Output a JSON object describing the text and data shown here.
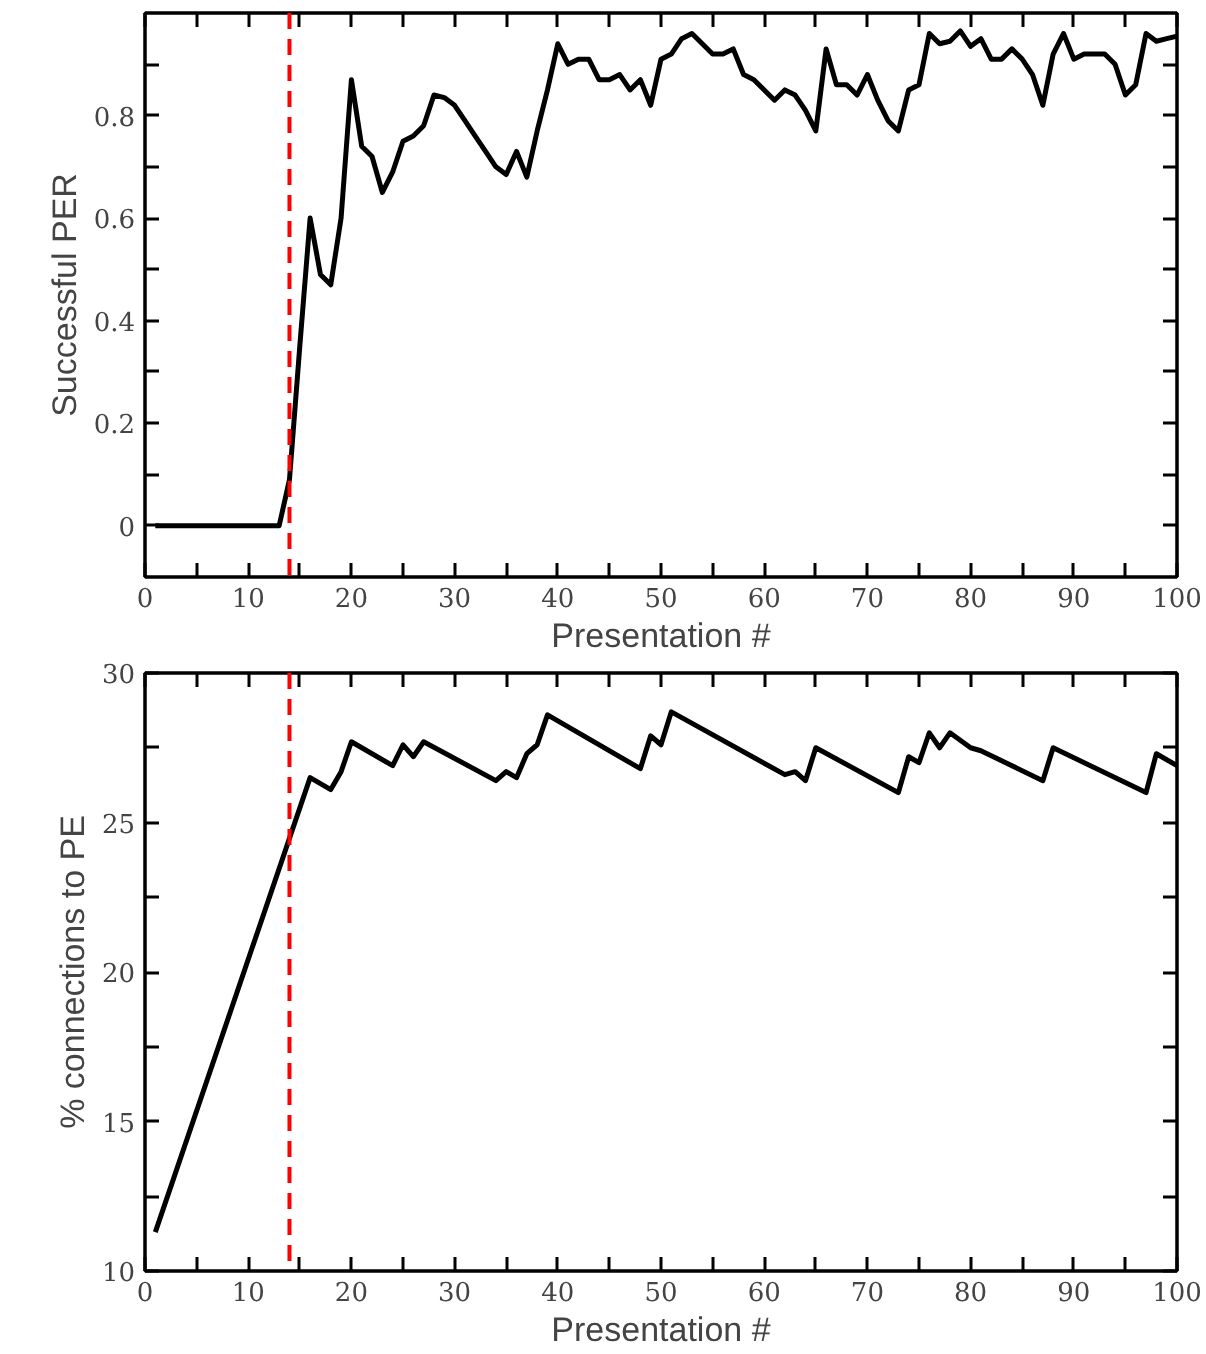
{
  "chart_data": [
    {
      "type": "line",
      "ylabel": "Successful PER",
      "xlabel": "Presentation #",
      "xlim": [
        0,
        100
      ],
      "ylim": [
        -0.1,
        1.0
      ],
      "xticks": [
        0,
        {
          "value": 5,
          "label": null
        },
        10,
        {
          "value": 15,
          "label": null
        },
        20,
        {
          "value": 25,
          "label": null
        },
        30,
        {
          "value": 35,
          "label": null
        },
        40,
        {
          "value": 45,
          "label": null
        },
        50,
        {
          "value": 55,
          "label": null
        },
        60,
        {
          "value": 65,
          "label": null
        },
        70,
        {
          "value": 75,
          "label": null
        },
        80,
        {
          "value": 85,
          "label": null
        },
        90,
        {
          "value": 95,
          "label": null
        },
        100
      ],
      "yticks": [
        0,
        {
          "value": 0.1,
          "label": null
        },
        0.2,
        {
          "value": 0.3,
          "label": null
        },
        0.4,
        {
          "value": 0.5,
          "label": null
        },
        0.6,
        {
          "value": 0.7,
          "label": null
        },
        0.8,
        {
          "value": 0.9,
          "label": null
        }
      ],
      "grid": false,
      "line_style": "solid",
      "x": [
        1,
        2,
        3,
        4,
        5,
        6,
        7,
        8,
        9,
        10,
        11,
        12,
        13,
        14,
        15,
        16,
        17,
        18,
        19,
        20,
        21,
        22,
        23,
        24,
        25,
        26,
        27,
        28,
        29,
        30,
        31,
        32,
        33,
        34,
        35,
        36,
        37,
        38,
        39,
        40,
        41,
        42,
        43,
        44,
        45,
        46,
        47,
        48,
        49,
        50,
        51,
        52,
        53,
        54,
        55,
        56,
        57,
        58,
        59,
        60,
        61,
        62,
        63,
        64,
        65,
        66,
        67,
        68,
        69,
        70,
        71,
        72,
        73,
        74,
        75,
        76,
        77,
        78,
        79,
        80,
        81,
        82,
        83,
        84,
        85,
        86,
        87,
        88,
        89,
        90,
        91,
        92,
        93,
        94,
        95,
        96,
        97,
        98,
        99,
        100
      ],
      "series": [
        {
          "color": "#000000",
          "values": [
            0,
            0,
            0,
            0,
            0,
            0,
            0,
            0,
            0,
            0,
            0,
            0,
            0,
            0.09,
            0.35,
            0.6,
            0.49,
            0.47,
            0.6,
            0.87,
            0.74,
            0.72,
            0.65,
            0.69,
            0.75,
            0.76,
            0.78,
            0.84,
            0.835,
            0.82,
            0.79,
            0.76,
            0.73,
            0.7,
            0.685,
            0.73,
            0.68,
            0.77,
            0.85,
            0.94,
            0.9,
            0.91,
            0.91,
            0.87,
            0.87,
            0.88,
            0.85,
            0.87,
            0.82,
            0.91,
            0.92,
            0.95,
            0.96,
            0.94,
            0.92,
            0.92,
            0.93,
            0.88,
            0.87,
            0.85,
            0.83,
            0.85,
            0.84,
            0.81,
            0.77,
            0.93,
            0.86,
            0.86,
            0.84,
            0.88,
            0.83,
            0.79,
            0.77,
            0.85,
            0.86,
            0.96,
            0.94,
            0.945,
            0.965,
            0.935,
            0.95,
            0.91,
            0.91,
            0.93,
            0.91,
            0.88,
            0.82,
            0.92,
            0.96,
            0.91,
            0.92,
            0.92,
            0.92,
            0.9,
            0.84,
            0.86,
            0.96,
            0.945,
            0.95,
            0.955
          ]
        }
      ],
      "ref_lines": [
        {
          "axis": "x",
          "value": 14,
          "color": "#ff0000",
          "line_style": "dashed"
        }
      ]
    },
    {
      "type": "line",
      "ylabel": "% connections to PE",
      "xlabel": "Presentation #",
      "xlim": [
        0,
        100
      ],
      "ylim": [
        10,
        30
      ],
      "xticks": [
        0,
        {
          "value": 5,
          "label": null
        },
        10,
        {
          "value": 15,
          "label": null
        },
        20,
        {
          "value": 25,
          "label": null
        },
        30,
        {
          "value": 35,
          "label": null
        },
        40,
        {
          "value": 45,
          "label": null
        },
        50,
        {
          "value": 55,
          "label": null
        },
        60,
        {
          "value": 65,
          "label": null
        },
        70,
        {
          "value": 75,
          "label": null
        },
        80,
        {
          "value": 85,
          "label": null
        },
        90,
        {
          "value": 95,
          "label": null
        },
        100
      ],
      "yticks": [
        10,
        {
          "value": 12.5,
          "label": null
        },
        15,
        {
          "value": 17.5,
          "label": null
        },
        20,
        {
          "value": 22.5,
          "label": null
        },
        25,
        {
          "value": 27.5,
          "label": null
        },
        30
      ],
      "grid": false,
      "line_style": "solid",
      "x": [
        1,
        16,
        18,
        19,
        20,
        24,
        25,
        26,
        27,
        34,
        35,
        36,
        37,
        38,
        39,
        48,
        49,
        50,
        51,
        62,
        63,
        64,
        65,
        73,
        74,
        75,
        76,
        77,
        78,
        80,
        81,
        87,
        88,
        97,
        98,
        100
      ],
      "series": [
        {
          "color": "#000000",
          "values": [
            11.3,
            26.5,
            26.1,
            26.7,
            27.7,
            26.9,
            27.6,
            27.2,
            27.7,
            26.4,
            26.7,
            26.5,
            27.3,
            27.6,
            28.6,
            26.8,
            27.9,
            27.6,
            28.7,
            26.6,
            26.7,
            26.4,
            27.5,
            26.0,
            27.2,
            27.0,
            28.0,
            27.5,
            28.0,
            27.5,
            27.4,
            26.4,
            27.5,
            26.0,
            27.3,
            26.9
          ]
        }
      ],
      "ref_lines": [
        {
          "axis": "x",
          "value": 14,
          "color": "#ff0000",
          "line_style": "dashed"
        }
      ]
    }
  ]
}
